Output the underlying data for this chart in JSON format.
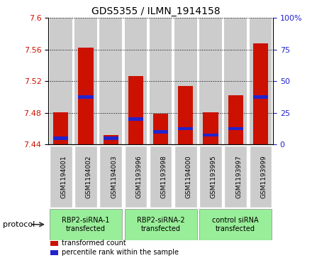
{
  "title": "GDS5355 / ILMN_1914158",
  "samples": [
    "GSM1194001",
    "GSM1194002",
    "GSM1194003",
    "GSM1193996",
    "GSM1193998",
    "GSM1194000",
    "GSM1193995",
    "GSM1193997",
    "GSM1193999"
  ],
  "transformed_count": [
    7.481,
    7.563,
    7.452,
    7.527,
    7.479,
    7.514,
    7.481,
    7.502,
    7.568
  ],
  "percentile_rank": [
    5.0,
    37.5,
    5.0,
    20.0,
    10.0,
    12.5,
    7.5,
    12.5,
    37.5
  ],
  "ymin": 7.44,
  "ymax": 7.6,
  "yticks": [
    7.44,
    7.48,
    7.52,
    7.56,
    7.6
  ],
  "right_yticks": [
    0,
    25,
    50,
    75,
    100
  ],
  "bar_color": "#cc1100",
  "percentile_color": "#2222cc",
  "bar_bottom": 7.44,
  "col_bg_color": "#cccccc",
  "groups": [
    {
      "label": "RBP2-siRNA-1\ntransfected",
      "start": 0,
      "end": 3,
      "color": "#99ee99"
    },
    {
      "label": "RBP2-siRNA-2\ntransfected",
      "start": 3,
      "end": 6,
      "color": "#99ee99"
    },
    {
      "label": "control siRNA\ntransfected",
      "start": 6,
      "end": 9,
      "color": "#99ee99"
    }
  ],
  "protocol_label": "protocol",
  "legend_items": [
    {
      "color": "#cc1100",
      "label": "transformed count"
    },
    {
      "color": "#2222cc",
      "label": "percentile rank within the sample"
    }
  ],
  "bar_width": 0.6,
  "percentile_bar_height": 0.004
}
